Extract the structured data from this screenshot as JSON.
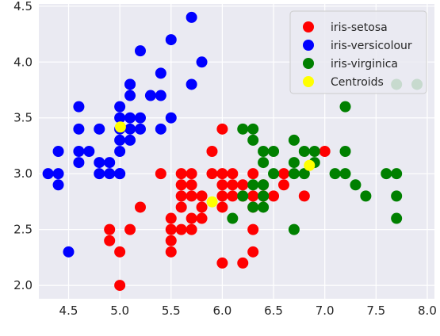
{
  "chart_data": {
    "type": "scatter",
    "title": "",
    "xlabel": "",
    "ylabel": "",
    "xlim": [
      4.21,
      8.07
    ],
    "ylim": [
      1.88,
      4.52
    ],
    "xticks": [
      4.5,
      5.0,
      5.5,
      6.0,
      6.5,
      7.0,
      7.5,
      8.0
    ],
    "xtick_labels": [
      "4.5",
      "5.0",
      "5.5",
      "6.0",
      "6.5",
      "7.0",
      "7.5",
      "8.0"
    ],
    "yticks": [
      2.0,
      2.5,
      3.0,
      3.5,
      4.0,
      4.5
    ],
    "ytick_labels": [
      "2.0",
      "2.5",
      "3.0",
      "3.5",
      "4.0",
      "4.5"
    ],
    "grid": true,
    "legend_position": "top-right",
    "series": [
      {
        "name": "iris-setosa",
        "color": "#ff0000",
        "points": [
          [
            6.0,
            3.4
          ],
          [
            5.0,
            2.3
          ],
          [
            5.0,
            2.0
          ],
          [
            5.1,
            2.5
          ],
          [
            4.9,
            2.5
          ],
          [
            4.9,
            2.4
          ],
          [
            5.2,
            2.7
          ],
          [
            5.4,
            3.0
          ],
          [
            5.5,
            2.6
          ],
          [
            5.5,
            2.5
          ],
          [
            5.5,
            2.4
          ],
          [
            5.5,
            2.3
          ],
          [
            5.6,
            3.0
          ],
          [
            5.6,
            2.9
          ],
          [
            5.6,
            2.8
          ],
          [
            5.6,
            2.7
          ],
          [
            5.6,
            2.5
          ],
          [
            5.7,
            3.0
          ],
          [
            5.7,
            2.9
          ],
          [
            5.7,
            2.8
          ],
          [
            5.7,
            2.6
          ],
          [
            5.7,
            2.5
          ],
          [
            5.8,
            2.8
          ],
          [
            5.8,
            2.7
          ],
          [
            5.8,
            2.6
          ],
          [
            5.9,
            3.2
          ],
          [
            5.9,
            3.0
          ],
          [
            6.0,
            3.0
          ],
          [
            6.0,
            2.9
          ],
          [
            6.0,
            2.7
          ],
          [
            6.0,
            2.2
          ],
          [
            6.1,
            3.0
          ],
          [
            6.1,
            2.9
          ],
          [
            6.1,
            2.8
          ],
          [
            6.2,
            2.9
          ],
          [
            6.2,
            2.2
          ],
          [
            6.3,
            2.5
          ],
          [
            6.3,
            2.3
          ],
          [
            6.3,
            2.7
          ],
          [
            6.4,
            2.9
          ],
          [
            6.5,
            2.8
          ],
          [
            6.6,
            3.0
          ],
          [
            6.6,
            2.9
          ],
          [
            6.8,
            2.8
          ],
          [
            7.0,
            3.2
          ],
          [
            6.3,
            3.0
          ],
          [
            6.4,
            2.8
          ],
          [
            6.2,
            2.8
          ],
          [
            6.3,
            2.8
          ],
          [
            6.0,
            2.8
          ]
        ]
      },
      {
        "name": "iris-versicolour",
        "color": "#0000ff",
        "points": [
          [
            4.3,
            3.0
          ],
          [
            4.4,
            3.0
          ],
          [
            4.4,
            2.9
          ],
          [
            4.4,
            3.2
          ],
          [
            4.5,
            2.3
          ],
          [
            4.6,
            3.6
          ],
          [
            4.6,
            3.4
          ],
          [
            4.6,
            3.2
          ],
          [
            4.6,
            3.1
          ],
          [
            4.7,
            3.2
          ],
          [
            4.8,
            3.4
          ],
          [
            4.8,
            3.1
          ],
          [
            4.8,
            3.0
          ],
          [
            4.9,
            3.1
          ],
          [
            4.9,
            3.0
          ],
          [
            5.0,
            3.6
          ],
          [
            5.0,
            3.5
          ],
          [
            5.0,
            3.4
          ],
          [
            5.0,
            3.3
          ],
          [
            5.0,
            3.2
          ],
          [
            5.0,
            3.0
          ],
          [
            5.1,
            3.8
          ],
          [
            5.1,
            3.7
          ],
          [
            5.1,
            3.5
          ],
          [
            5.1,
            3.4
          ],
          [
            5.1,
            3.3
          ],
          [
            5.2,
            4.1
          ],
          [
            5.2,
            3.5
          ],
          [
            5.2,
            3.4
          ],
          [
            5.3,
            3.7
          ],
          [
            5.4,
            3.9
          ],
          [
            5.4,
            3.7
          ],
          [
            5.4,
            3.4
          ],
          [
            5.5,
            4.2
          ],
          [
            5.5,
            3.5
          ],
          [
            5.7,
            4.4
          ],
          [
            5.7,
            3.8
          ],
          [
            5.8,
            4.0
          ],
          [
            5.1,
            3.8
          ],
          [
            5.0,
            3.0
          ]
        ]
      },
      {
        "name": "iris-virginica",
        "color": "#008000",
        "points": [
          [
            6.1,
            2.6
          ],
          [
            6.2,
            3.4
          ],
          [
            6.3,
            3.4
          ],
          [
            6.3,
            3.3
          ],
          [
            6.3,
            2.9
          ],
          [
            6.4,
            3.2
          ],
          [
            6.4,
            3.1
          ],
          [
            6.4,
            2.8
          ],
          [
            6.4,
            2.7
          ],
          [
            6.5,
            3.2
          ],
          [
            6.5,
            3.0
          ],
          [
            6.7,
            3.3
          ],
          [
            6.7,
            3.1
          ],
          [
            6.7,
            3.0
          ],
          [
            6.7,
            2.5
          ],
          [
            6.8,
            3.2
          ],
          [
            6.8,
            3.0
          ],
          [
            6.9,
            3.2
          ],
          [
            6.9,
            3.1
          ],
          [
            7.1,
            3.0
          ],
          [
            7.2,
            3.6
          ],
          [
            7.2,
            3.2
          ],
          [
            7.2,
            3.0
          ],
          [
            7.3,
            2.9
          ],
          [
            7.4,
            2.8
          ],
          [
            7.6,
            3.0
          ],
          [
            7.7,
            3.8
          ],
          [
            7.7,
            3.0
          ],
          [
            7.7,
            2.8
          ],
          [
            7.7,
            2.6
          ],
          [
            7.9,
            3.8
          ],
          [
            6.3,
            2.7
          ],
          [
            6.4,
            2.9
          ],
          [
            6.2,
            2.8
          ]
        ]
      },
      {
        "name": "Centroids",
        "color": "#ffff00",
        "points": [
          [
            5.006,
            3.418
          ],
          [
            5.901,
            2.748
          ],
          [
            6.85,
            3.074
          ]
        ]
      }
    ]
  }
}
